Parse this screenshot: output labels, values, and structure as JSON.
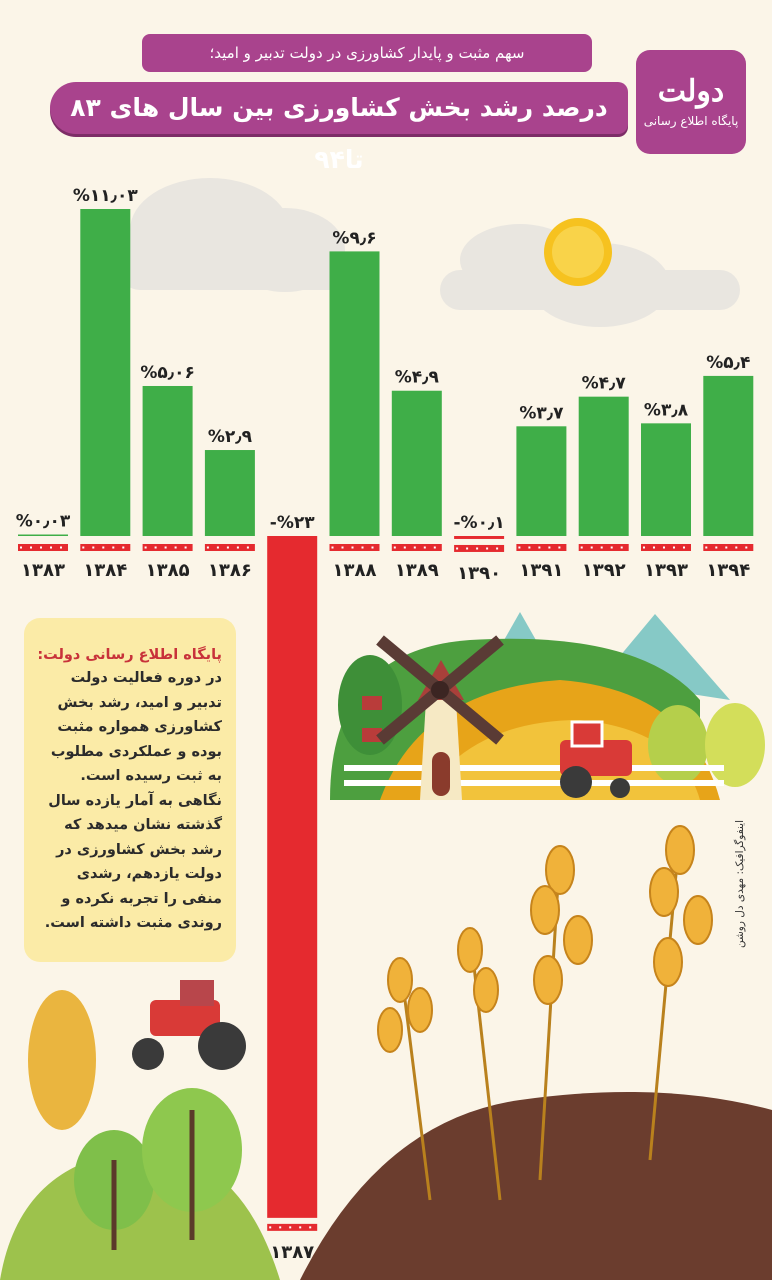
{
  "header": {
    "subtitle": "سهم مثبت و پایدار کشاورزی در دولت تدبیر و امید؛",
    "title": "درصد رشد بخش کشاورزی بین سال های ۸۳ تا۹۴"
  },
  "logo": {
    "main": "دولت",
    "sub": "پایگاه اطلاع رسانی"
  },
  "note": {
    "title": "پایگاه اطلاع رسانی دولت:",
    "body": "در دوره فعالیت دولت تدبیر و امید، رشد بخش کشاورزی همواره مثبت بوده و عملکردی مطلوب به ثبت رسیده است. نگاهی به آمار یازده سال گذشته نشان میدهد که رشد بخش کشاورزی در دولت یازدهم، رشدی منفی را تجربه نکرده و روندی مثبت داشته است."
  },
  "credit": "اینفوگرافیک: مهدی دل روشن",
  "colors": {
    "positive": "#3fae48",
    "negative": "#e52a2f",
    "accent": "#a9438d",
    "label": "#222222"
  },
  "chart_data": {
    "type": "bar",
    "title": "درصد رشد بخش کشاورزی بین سال های ۸۳ تا۹۴",
    "xlabel": "",
    "ylabel": "",
    "ylim": [
      -23,
      11.03
    ],
    "grid": false,
    "categories": [
      "۱۳۸۳",
      "۱۳۸۴",
      "۱۳۸۵",
      "۱۳۸۶",
      "۱۳۸۷",
      "۱۳۸۸",
      "۱۳۸۹",
      "۱۳۹۰",
      "۱۳۹۱",
      "۱۳۹۲",
      "۱۳۹۳",
      "۱۳۹۴"
    ],
    "values": [
      0.03,
      11.03,
      5.06,
      2.9,
      -23,
      9.6,
      4.9,
      -0.1,
      3.7,
      4.7,
      3.8,
      5.4
    ],
    "data_labels": [
      "%۰٫۰۳",
      "%۱۱٫۰۳",
      "%۵٫۰۶",
      "%۲٫۹",
      "-%۲۳",
      "%۹٫۶",
      "%۴٫۹",
      "-%۰٫۱",
      "%۳٫۷",
      "%۴٫۷",
      "%۳٫۸",
      "%۵٫۴"
    ]
  }
}
